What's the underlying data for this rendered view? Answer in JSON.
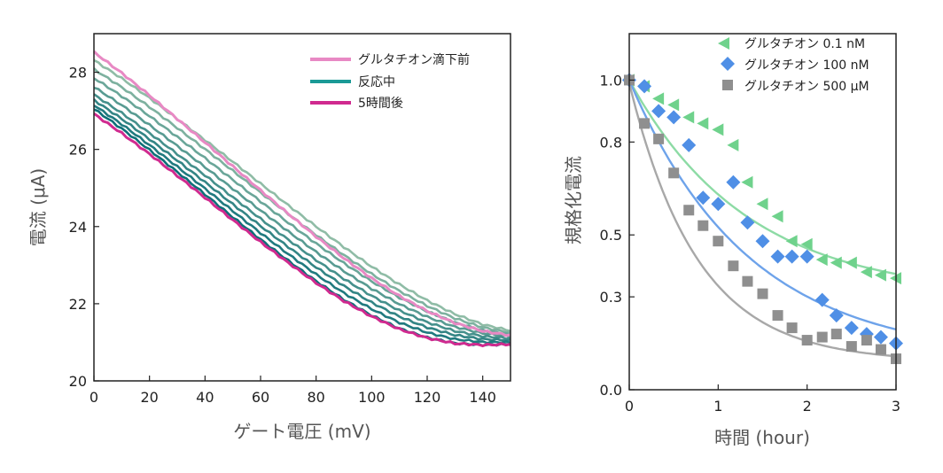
{
  "chart_data": [
    {
      "type": "line",
      "xlabel": "ゲート電圧 (mV)",
      "ylabel": "電流 (μA)",
      "xlim": [
        0,
        150
      ],
      "ylim": [
        20,
        29
      ],
      "xticks": [
        0,
        20,
        40,
        60,
        80,
        100,
        120,
        140
      ],
      "yticks": [
        20,
        22,
        24,
        26,
        28
      ],
      "legend_position": "top-right",
      "colors": {
        "before": "#e889c4",
        "during": "#1a9a96",
        "after": "#d02a8f"
      },
      "legend": [
        {
          "label": "グルタチオン滴下前",
          "color": "#e889c4"
        },
        {
          "label": "反応中",
          "color": "#1a9a96"
        },
        {
          "label": "5時間後",
          "color": "#d02a8f"
        }
      ],
      "x": [
        0,
        10,
        20,
        30,
        40,
        50,
        60,
        70,
        80,
        90,
        100,
        110,
        120,
        130,
        140,
        150
      ],
      "series_before": [
        28.52,
        27.98,
        27.4,
        26.79,
        26.18,
        25.56,
        24.94,
        24.33,
        23.74,
        23.18,
        22.66,
        22.2,
        21.81,
        21.5,
        21.29,
        21.18
      ],
      "series_after": [
        26.92,
        26.42,
        25.88,
        25.32,
        24.75,
        24.17,
        23.6,
        23.06,
        22.54,
        22.07,
        21.67,
        21.34,
        21.11,
        20.97,
        20.93,
        20.95
      ],
      "series_during_start": [
        28.31,
        28.08,
        27.85,
        27.62,
        27.42,
        27.28,
        27.15,
        27.05
      ],
      "series_during_end": [
        21.3,
        21.25,
        21.2,
        21.15,
        21.1,
        21.05,
        21.0,
        20.95
      ]
    },
    {
      "type": "scatter",
      "xlabel": "時間 (hour)",
      "ylabel": "規格化電流",
      "xlim": [
        0,
        3
      ],
      "ylim": [
        0,
        1.15
      ],
      "xticks": [
        0,
        1,
        2,
        3
      ],
      "yticks": [
        0.0,
        0.3,
        0.5,
        0.8,
        1.0
      ],
      "ytick_labels": [
        "0.0",
        "0.3",
        "0.5",
        "0.8",
        "1.0"
      ],
      "legend_position": "top-right",
      "series": [
        {
          "name": "グルタチオン 0.1 nM",
          "marker": "triangle-left",
          "color": "#6fd28c",
          "fit_color": "#8ddba5",
          "x": [
            0.0,
            0.17,
            0.33,
            0.5,
            0.67,
            0.83,
            1.0,
            1.17,
            1.33,
            1.5,
            1.67,
            1.83,
            2.0,
            2.17,
            2.33,
            2.5,
            2.67,
            2.83,
            3.0
          ],
          "y": [
            1.0,
            0.98,
            0.94,
            0.92,
            0.88,
            0.86,
            0.84,
            0.79,
            0.67,
            0.6,
            0.56,
            0.48,
            0.47,
            0.42,
            0.41,
            0.41,
            0.38,
            0.37,
            0.36
          ],
          "fit": {
            "a": 0.7,
            "k": 0.75,
            "c": 0.3
          }
        },
        {
          "name": "グルタチオン 100 nM",
          "marker": "diamond",
          "color": "#4f8fe6",
          "fit_color": "#6ea3ea",
          "x": [
            0.0,
            0.17,
            0.33,
            0.5,
            0.67,
            0.83,
            1.0,
            1.17,
            1.33,
            1.5,
            1.67,
            1.83,
            2.0,
            2.17,
            2.33,
            2.5,
            2.67,
            2.83,
            3.0
          ],
          "y": [
            1.0,
            0.98,
            0.9,
            0.88,
            0.79,
            0.62,
            0.6,
            0.67,
            0.54,
            0.48,
            0.43,
            0.43,
            0.43,
            0.29,
            0.24,
            0.2,
            0.18,
            0.17,
            0.15
          ],
          "fit": {
            "a": 0.9,
            "k": 0.75,
            "c": 0.1
          }
        },
        {
          "name": "グルタチオン 500 μM",
          "marker": "square",
          "color": "#8f8f8f",
          "fit_color": "#a8a8a8",
          "x": [
            0.0,
            0.17,
            0.33,
            0.5,
            0.67,
            0.83,
            1.0,
            1.17,
            1.33,
            1.5,
            1.67,
            1.83,
            2.0,
            2.17,
            2.33,
            2.5,
            2.67,
            2.83,
            3.0
          ],
          "y": [
            1.0,
            0.86,
            0.81,
            0.7,
            0.58,
            0.53,
            0.48,
            0.4,
            0.35,
            0.31,
            0.24,
            0.2,
            0.16,
            0.17,
            0.18,
            0.14,
            0.16,
            0.13,
            0.1
          ],
          "fit": {
            "a": 0.9,
            "k": 1.3,
            "c": 0.09
          }
        }
      ]
    }
  ]
}
